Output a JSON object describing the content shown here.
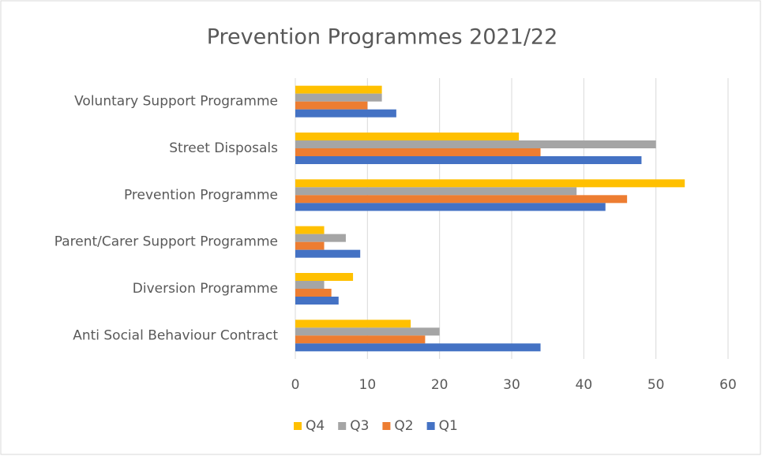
{
  "chart_data": {
    "type": "bar",
    "orientation": "horizontal",
    "title": "Prevention Programmes 2021/22",
    "categories": [
      "Voluntary Support Programme",
      "Street Disposals",
      "Prevention Programme",
      "Parent/Carer Support Programme",
      "Diversion Programme",
      "Anti Social Behaviour Contract"
    ],
    "series": [
      {
        "name": "Q4",
        "color": "#ffc000",
        "values": [
          12,
          31,
          54,
          4,
          8,
          16
        ]
      },
      {
        "name": "Q3",
        "color": "#a5a5a5",
        "values": [
          12,
          50,
          39,
          7,
          4,
          20
        ]
      },
      {
        "name": "Q2",
        "color": "#ed7d31",
        "values": [
          10,
          34,
          46,
          4,
          5,
          18
        ]
      },
      {
        "name": "Q1",
        "color": "#4472c4",
        "values": [
          14,
          48,
          43,
          9,
          6,
          34
        ]
      }
    ],
    "xlim": [
      0,
      60
    ],
    "xticks": [
      0,
      10,
      20,
      30,
      40,
      50,
      60
    ],
    "grid": true,
    "legend": "bottom"
  }
}
